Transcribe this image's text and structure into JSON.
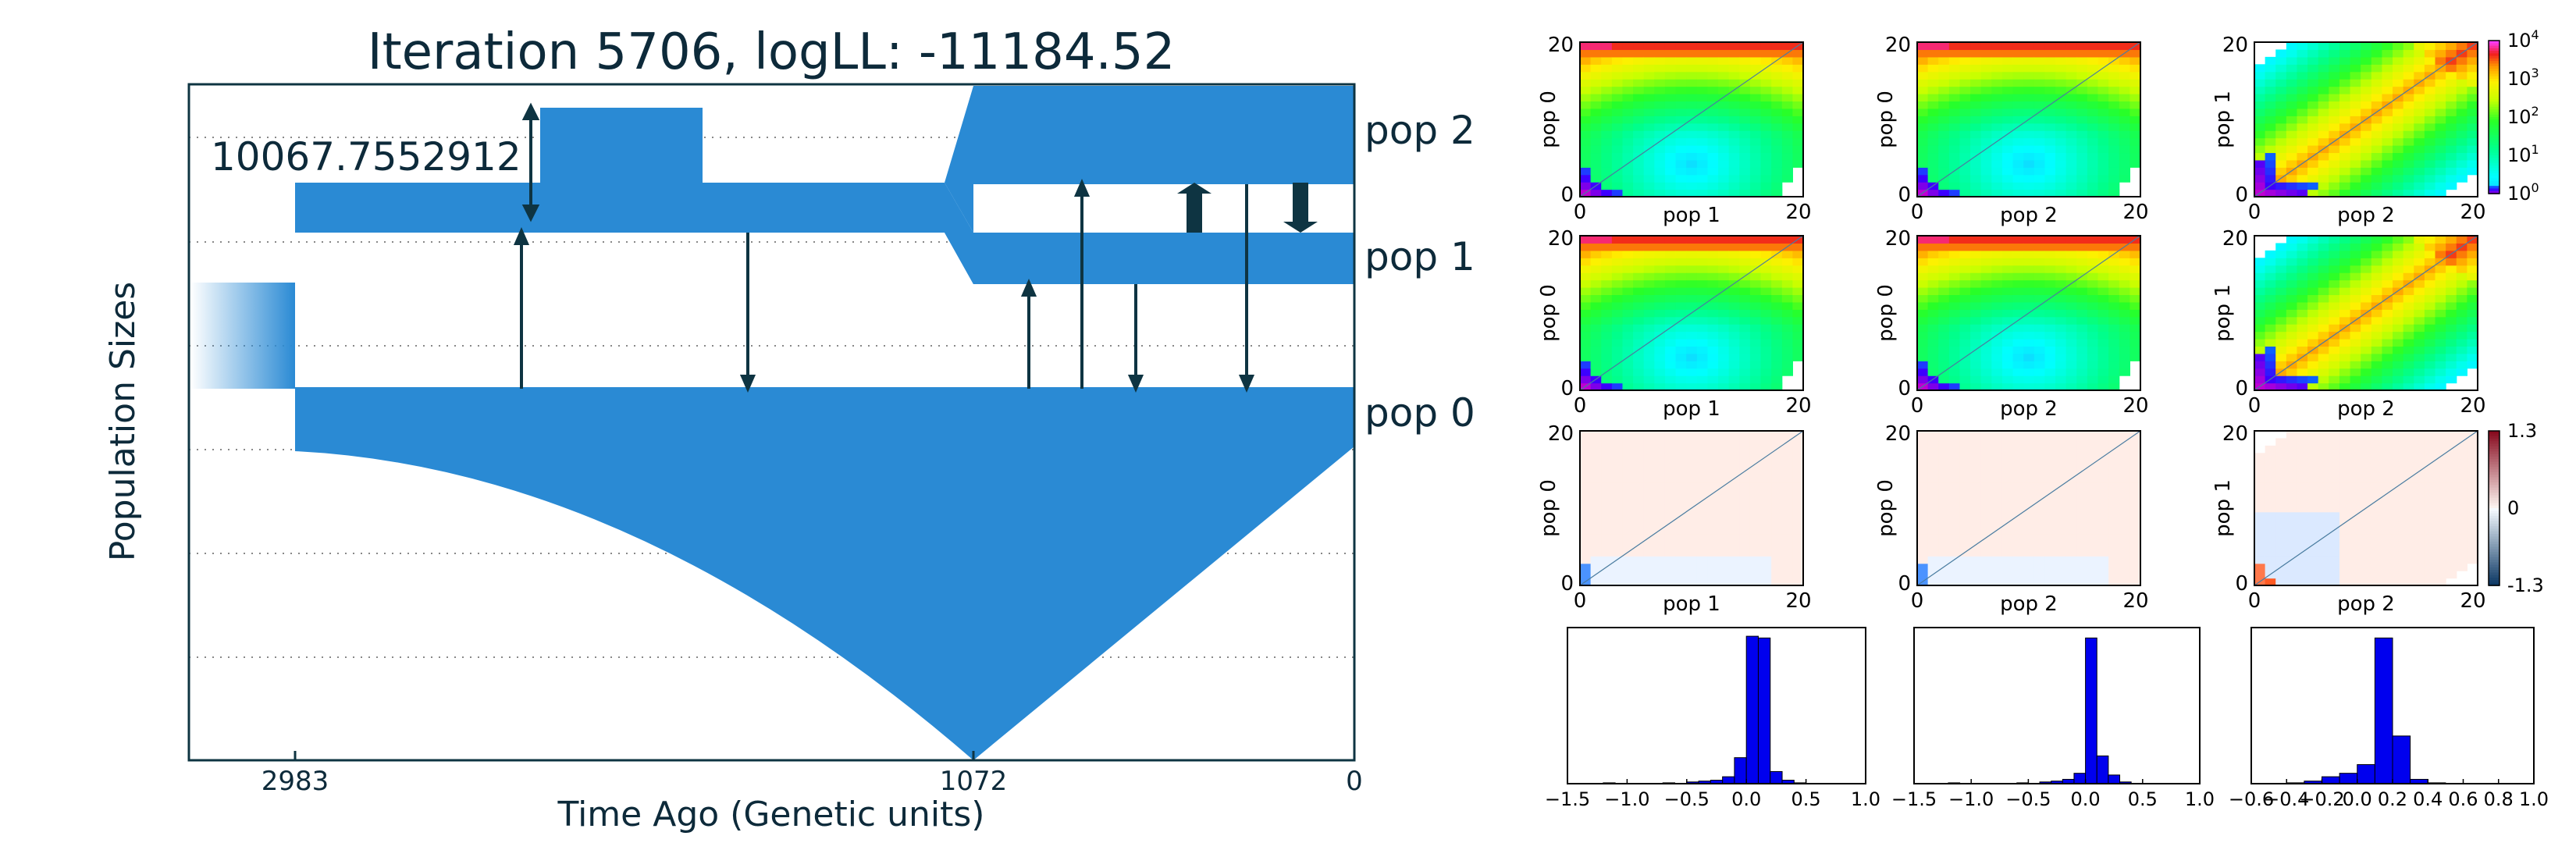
{
  "colors": {
    "pop_fill": "#2a8ad4",
    "arrow": "#0e3442",
    "frame": "#0e3442",
    "grid": "#888888",
    "hist_bar": "#0000ee"
  },
  "demography": {
    "title": "Iteration 5706, logLL:  -11184.52",
    "ylabel": "Population Sizes",
    "xlabel": "Time Ago (Genetic units)",
    "xticks": [
      "2983",
      "1072",
      "0"
    ],
    "size_annotation": "10067.7552912",
    "pop_labels": [
      "pop 2",
      "pop 1",
      "pop 0"
    ]
  },
  "chart_data": [
    {
      "type": "heatmap",
      "panel": "sfs-model-pop0-pop1",
      "xlabel": "pop 1",
      "ylabel": "pop 0",
      "xlim": [
        0,
        20
      ],
      "ylim": [
        0,
        20
      ],
      "xticks": [
        "0",
        "20"
      ],
      "yticks": [
        "0",
        "20"
      ],
      "scale": "log",
      "colormap": "gist_ncar-like",
      "colorbar_ticks": [
        "10^0",
        "10^1",
        "10^2",
        "10^3",
        "10^4"
      ]
    },
    {
      "type": "heatmap",
      "panel": "sfs-model-pop0-pop2",
      "xlabel": "pop 2",
      "ylabel": "pop 0",
      "xlim": [
        0,
        20
      ],
      "ylim": [
        0,
        20
      ],
      "xticks": [
        "0",
        "20"
      ],
      "yticks": [
        "0",
        "20"
      ],
      "scale": "log"
    },
    {
      "type": "heatmap",
      "panel": "sfs-model-pop1-pop2",
      "xlabel": "pop 2",
      "ylabel": "pop 1",
      "xlim": [
        0,
        20
      ],
      "ylim": [
        0,
        20
      ],
      "xticks": [
        "0",
        "20"
      ],
      "yticks": [
        "0",
        "20"
      ],
      "scale": "log"
    },
    {
      "type": "heatmap",
      "panel": "sfs-data-pop0-pop1",
      "xlabel": "pop 1",
      "ylabel": "pop 0",
      "xlim": [
        0,
        20
      ],
      "ylim": [
        0,
        20
      ],
      "xticks": [
        "0",
        "20"
      ],
      "yticks": [
        "0",
        "20"
      ],
      "scale": "log"
    },
    {
      "type": "heatmap",
      "panel": "sfs-data-pop0-pop2",
      "xlabel": "pop 2",
      "ylabel": "pop 0",
      "xlim": [
        0,
        20
      ],
      "ylim": [
        0,
        20
      ],
      "xticks": [
        "0",
        "20"
      ],
      "yticks": [
        "0",
        "20"
      ],
      "scale": "log"
    },
    {
      "type": "heatmap",
      "panel": "sfs-data-pop1-pop2",
      "xlabel": "pop 2",
      "ylabel": "pop 1",
      "xlim": [
        0,
        20
      ],
      "ylim": [
        0,
        20
      ],
      "xticks": [
        "0",
        "20"
      ],
      "yticks": [
        "0",
        "20"
      ],
      "scale": "log"
    },
    {
      "type": "heatmap",
      "panel": "residual-pop0-pop1",
      "xlabel": "pop 1",
      "ylabel": "pop 0",
      "xlim": [
        0,
        20
      ],
      "ylim": [
        0,
        20
      ],
      "xticks": [
        "0",
        "20"
      ],
      "yticks": [
        "0",
        "20"
      ],
      "scale": "linear",
      "colormap": "RdBu_r",
      "colorbar_ticks": [
        "1.3",
        "0",
        "-1.3"
      ],
      "vlim": [
        -1.3,
        1.3
      ]
    },
    {
      "type": "heatmap",
      "panel": "residual-pop0-pop2",
      "xlabel": "pop 2",
      "ylabel": "pop 0",
      "xlim": [
        0,
        20
      ],
      "ylim": [
        0,
        20
      ],
      "xticks": [
        "0",
        "20"
      ],
      "yticks": [
        "0",
        "20"
      ],
      "scale": "linear"
    },
    {
      "type": "heatmap",
      "panel": "residual-pop1-pop2",
      "xlabel": "pop 2",
      "ylabel": "pop 1",
      "xlim": [
        0,
        20
      ],
      "ylim": [
        0,
        20
      ],
      "xticks": [
        "0",
        "20"
      ],
      "yticks": [
        "0",
        "20"
      ],
      "scale": "linear"
    },
    {
      "type": "bar",
      "panel": "residual-histogram-1",
      "xlim": [
        -1.5,
        1.0
      ],
      "xticks": [
        "−1.5",
        "−1.0",
        "−0.5",
        "0.0",
        "0.5",
        "1.0"
      ],
      "bin_width": 0.1,
      "bins": [
        {
          "x": -1.2,
          "count": 1
        },
        {
          "x": -0.7,
          "count": 1
        },
        {
          "x": -0.5,
          "count": 2
        },
        {
          "x": -0.4,
          "count": 3
        },
        {
          "x": -0.3,
          "count": 4
        },
        {
          "x": -0.2,
          "count": 8
        },
        {
          "x": -0.1,
          "count": 30
        },
        {
          "x": 0.0,
          "count": 170
        },
        {
          "x": 0.1,
          "count": 168
        },
        {
          "x": 0.2,
          "count": 14
        },
        {
          "x": 0.3,
          "count": 4
        },
        {
          "x": 0.4,
          "count": 1
        }
      ]
    },
    {
      "type": "bar",
      "panel": "residual-histogram-2",
      "xlim": [
        -1.5,
        1.0
      ],
      "xticks": [
        "−1.5",
        "−1.0",
        "−0.5",
        "0.0",
        "0.5",
        "1.0"
      ],
      "bin_width": 0.1,
      "bins": [
        {
          "x": -1.2,
          "count": 1
        },
        {
          "x": -0.6,
          "count": 1
        },
        {
          "x": -0.4,
          "count": 2
        },
        {
          "x": -0.3,
          "count": 3
        },
        {
          "x": -0.2,
          "count": 5
        },
        {
          "x": -0.1,
          "count": 12
        },
        {
          "x": 0.0,
          "count": 168
        },
        {
          "x": 0.1,
          "count": 32
        },
        {
          "x": 0.2,
          "count": 10
        },
        {
          "x": 0.3,
          "count": 2
        }
      ]
    },
    {
      "type": "bar",
      "panel": "residual-histogram-3",
      "xlim": [
        -0.6,
        1.0
      ],
      "xticks": [
        "−0.6",
        "−0.4",
        "−0.2",
        "0.0",
        "0.2",
        "0.4",
        "0.6",
        "0.8",
        "1.0"
      ],
      "bin_width": 0.1,
      "bins": [
        {
          "x": -0.4,
          "count": 1
        },
        {
          "x": -0.3,
          "count": 3
        },
        {
          "x": -0.2,
          "count": 8
        },
        {
          "x": -0.1,
          "count": 12
        },
        {
          "x": 0.0,
          "count": 22
        },
        {
          "x": 0.1,
          "count": 168
        },
        {
          "x": 0.2,
          "count": 55
        },
        {
          "x": 0.3,
          "count": 5
        },
        {
          "x": 0.4,
          "count": 1
        }
      ]
    }
  ]
}
